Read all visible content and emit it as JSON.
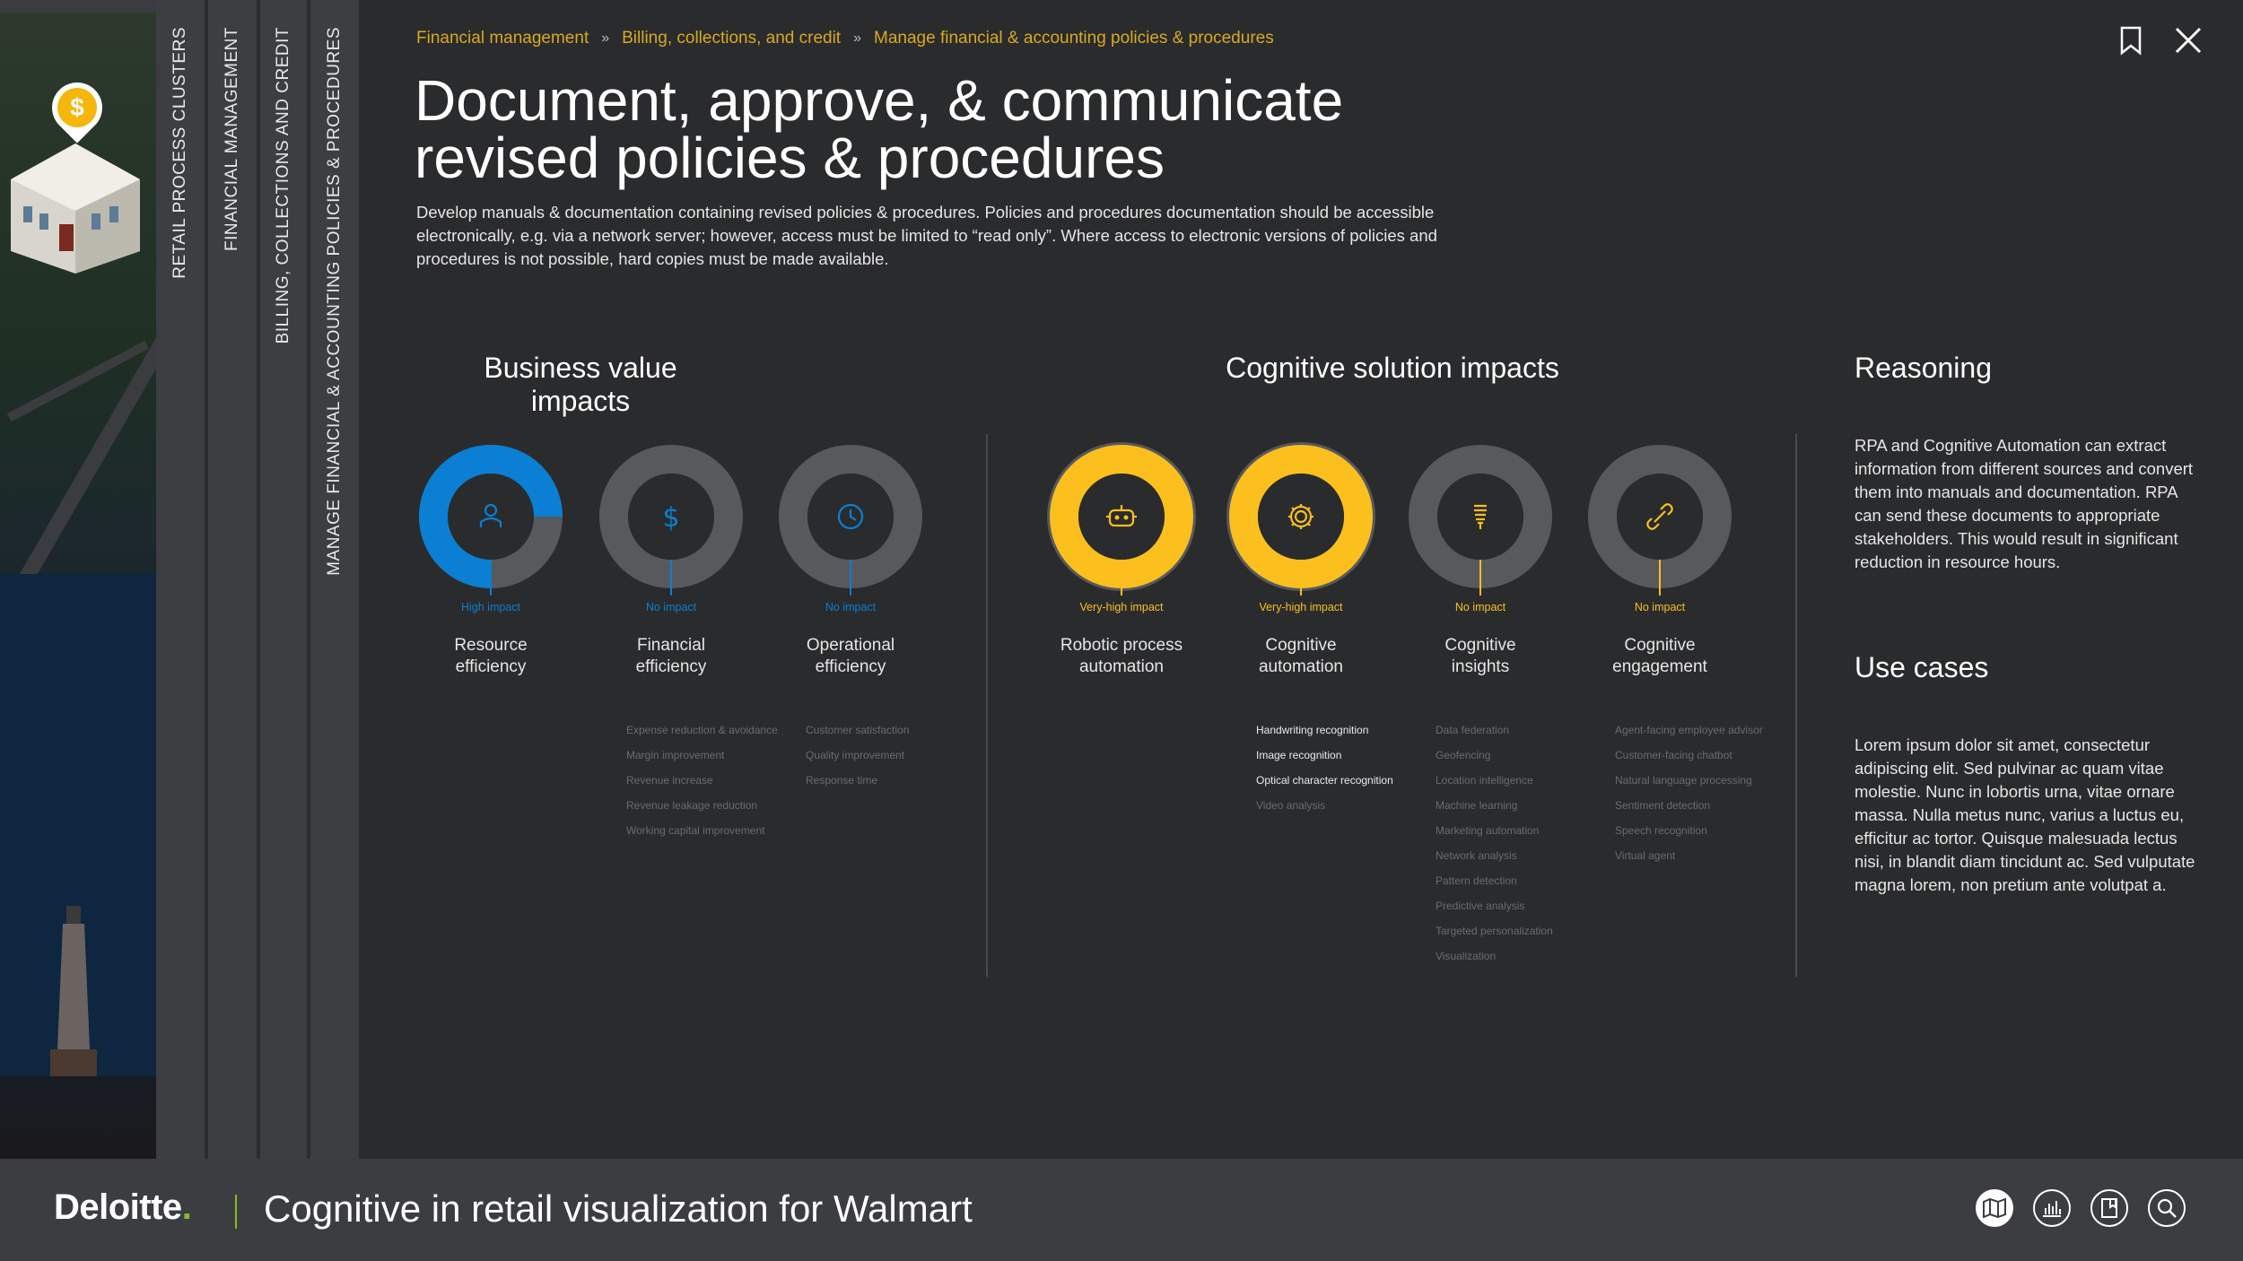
{
  "sidebar": {
    "bars": [
      "RETAIL PROCESS CLUSTERS",
      "FINANCIAL MANAGEMENT",
      "BILLING, COLLECTIONS AND CREDIT",
      "MANAGE FINANCIAL & ACCOUNTING POLICIES & PROCEDURES"
    ],
    "pin_symbol": "$"
  },
  "breadcrumb": [
    "Financial management",
    "Billing, collections, and credit",
    "Manage financial & accounting policies & procedures"
  ],
  "header": {
    "title_line1": "Document, approve, & communicate",
    "title_line2": "revised policies & procedures",
    "description": "Develop manuals & documentation containing revised policies & procedures. Policies and procedures documentation should be accessible electronically, e.g. via a network server; however, access must be limited to “read only”. Where access to electronic versions of policies and procedures is not possible, hard copies must be made available."
  },
  "business_value": {
    "title": "Business value impacts",
    "items": [
      {
        "label_1": "Resource",
        "label_2": "efficiency",
        "impact": "High impact",
        "icon": "person-icon",
        "fill": 0.75,
        "color": "#0a7fd3",
        "list": []
      },
      {
        "label_1": "Financial",
        "label_2": "efficiency",
        "impact": "No impact",
        "icon": "dollar-icon",
        "fill": 0,
        "color": "#0a7fd3",
        "list": [
          "Expense reduction & avoidance",
          "Margin improvement",
          "Revenue increase",
          "Revenue leakage reduction",
          "Working capital improvement"
        ]
      },
      {
        "label_1": "Operational",
        "label_2": "efficiency",
        "impact": "No impact",
        "icon": "clock-icon",
        "fill": 0,
        "color": "#0a7fd3",
        "list": [
          "Customer satisfaction",
          "Quality improvement",
          "Response time"
        ]
      }
    ]
  },
  "cognitive": {
    "title": "Cognitive solution impacts",
    "items": [
      {
        "label_1": "Robotic process",
        "label_2": "automation",
        "impact": "Very-high impact",
        "icon": "robot-icon",
        "fill": 1,
        "color": "#fbbf1e",
        "list": []
      },
      {
        "label_1": "Cognitive",
        "label_2": "automation",
        "impact": "Very-high impact",
        "icon": "gear-icon",
        "fill": 1,
        "color": "#fbbf1e",
        "list": [
          "Handwriting recognition",
          "Image recognition",
          "Optical character recognition",
          "Video analysis"
        ],
        "active": [
          true,
          true,
          true,
          false
        ]
      },
      {
        "label_1": "Cognitive",
        "label_2": "insights",
        "impact": "No impact",
        "icon": "lightbulb-icon",
        "fill": 0,
        "color": "#fbbf1e",
        "list": [
          "Data federation",
          "Geofencing",
          "Location intelligence",
          "Machine learning",
          "Marketing automation",
          "Network analysis",
          "Pattern detection",
          "Predictive analysis",
          "Targeted personalization",
          "Visualization"
        ]
      },
      {
        "label_1": "Cognitive",
        "label_2": "engagement",
        "impact": "No impact",
        "icon": "link-icon",
        "fill": 0,
        "color": "#fbbf1e",
        "list": [
          "Agent-facing employee advisor",
          "Customer-facing chatbot",
          "Natural language processing",
          "Sentiment detection",
          "Speech recognition",
          "Virtual agent"
        ]
      }
    ]
  },
  "reasoning": {
    "title": "Reasoning",
    "text": "RPA and Cognitive Automation can extract information from different sources and convert them into manuals and documentation. RPA can send these documents to appropriate stakeholders. This would result in significant reduction in resource hours."
  },
  "use_cases": {
    "title": "Use cases",
    "text": "Lorem ipsum dolor sit amet, consectetur adipiscing elit. Sed pulvinar ac quam vitae molestie. Nunc in lobortis urna, vitae ornare massa. Nulla metus nunc, varius a luctus eu, efficitur ac tortor. Quisque malesuada lectus nisi, in blandit diam tincidunt ac. Sed vulputate magna lorem, non pretium ante volutpat a."
  },
  "footer": {
    "logo": "Deloitte",
    "logo_dot": ".",
    "title": "Cognitive in retail visualization for Walmart",
    "icons": [
      "map-icon",
      "chart-icon",
      "bookmark-book-icon",
      "search-icon"
    ]
  },
  "colors": {
    "accent_blue": "#0a7fd3",
    "accent_yellow": "#fbbf1e",
    "breadcrumb": "#d9a91f",
    "deloitte_green": "#86bc25"
  }
}
